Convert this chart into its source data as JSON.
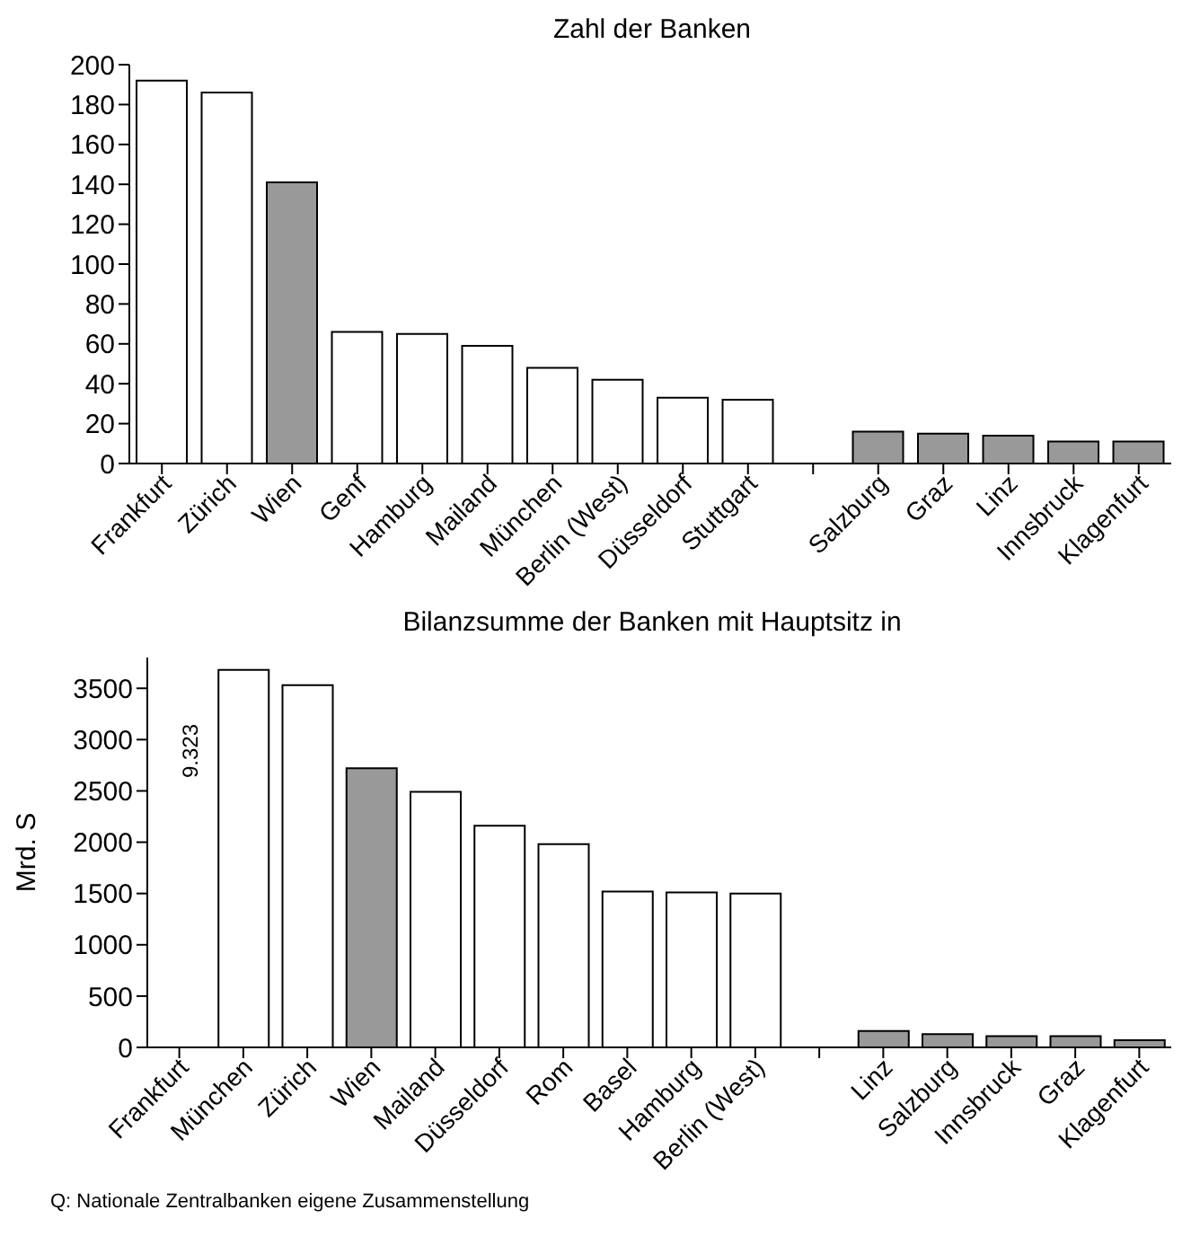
{
  "chart_data": [
    {
      "type": "bar",
      "title": "Zahl der Banken",
      "categories": [
        "Frankfurt",
        "Zürich",
        "Wien",
        "Genf",
        "Hamburg",
        "Mailand",
        "München",
        "Berlin (West)",
        "Düsseldorf",
        "Stuttgart",
        null,
        "Salzburg",
        "Graz",
        "Linz",
        "Innsbruck",
        "Klagenfurt"
      ],
      "values": [
        192,
        186,
        141,
        66,
        65,
        59,
        48,
        42,
        33,
        32,
        null,
        16,
        15,
        14,
        11,
        11
      ],
      "colors": [
        "#ffffff",
        "#ffffff",
        "#999999",
        "#ffffff",
        "#ffffff",
        "#ffffff",
        "#ffffff",
        "#ffffff",
        "#ffffff",
        "#ffffff",
        "#ffffff",
        "#999999",
        "#999999",
        "#999999",
        "#999999",
        "#999999"
      ],
      "ylim": [
        0,
        200
      ],
      "yticks": [
        0,
        20,
        40,
        60,
        80,
        100,
        120,
        140,
        160,
        180,
        200
      ],
      "grid": false,
      "legend": false
    },
    {
      "type": "bar",
      "title": "Bilanzsumme der Banken mit Hauptsitz in",
      "ylabel": "Mrd. S",
      "categories": [
        "Frankfurt",
        "München",
        "Zürich",
        "Wien",
        "Mailand",
        "Düsseldorf",
        "Rom",
        "Basel",
        "Hamburg",
        "Berlin (West)",
        null,
        "Linz",
        "Salzburg",
        "Innsbruck",
        "Graz",
        "Klagenfurt"
      ],
      "values": [
        null,
        3680,
        3530,
        2720,
        2490,
        2160,
        1980,
        1520,
        1510,
        1500,
        null,
        160,
        130,
        110,
        110,
        70
      ],
      "value_labels": [
        "9.323",
        null,
        null,
        null,
        null,
        null,
        null,
        null,
        null,
        null,
        null,
        null,
        null,
        null,
        null,
        null
      ],
      "colors": [
        "#ffffff",
        "#ffffff",
        "#ffffff",
        "#999999",
        "#ffffff",
        "#ffffff",
        "#ffffff",
        "#ffffff",
        "#ffffff",
        "#ffffff",
        "#ffffff",
        "#999999",
        "#999999",
        "#999999",
        "#999999",
        "#999999"
      ],
      "ylim": [
        0,
        3800
      ],
      "yticks": [
        0,
        500,
        1000,
        1500,
        2000,
        2500,
        3000,
        3500
      ],
      "grid": false,
      "legend": false,
      "annotations": [
        "Q: Nationale Zentralbanken eigene Zusammenstellung"
      ]
    }
  ]
}
